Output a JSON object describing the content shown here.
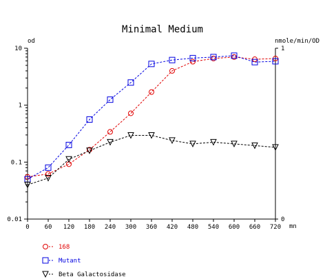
{
  "chart_data": {
    "type": "line",
    "title": "Minimal Medium",
    "left_axis_label": "od",
    "right_axis_label": "nmole/min/OD",
    "x_unit": "mn",
    "x": [
      0,
      60,
      120,
      180,
      240,
      300,
      360,
      420,
      480,
      540,
      600,
      660,
      720
    ],
    "x_ticks": [
      "0",
      "60",
      "120",
      "180",
      "240",
      "300",
      "360",
      "420",
      "480",
      "540",
      "600",
      "660",
      "720"
    ],
    "xlim": [
      0,
      720
    ],
    "left_scale": "log",
    "left_ylim": [
      0.01,
      10
    ],
    "left_ticks": [
      {
        "value": 10,
        "label": "10"
      },
      {
        "value": 1,
        "label": "1"
      },
      {
        "value": 0.1,
        "label": "0.1"
      },
      {
        "value": 0.01,
        "label": "0.01"
      }
    ],
    "right_ylim": [
      0,
      1
    ],
    "right_ticks": [
      {
        "value": 1,
        "label": "1"
      },
      {
        "value": 0,
        "label": "0"
      }
    ],
    "grid": false,
    "legend_position": "bottom-left",
    "series": [
      {
        "name": "168",
        "axis": "left",
        "color": "#e00000",
        "marker": "circle",
        "dash": "dashed",
        "values": [
          0.055,
          0.062,
          0.092,
          0.165,
          0.34,
          0.72,
          1.7,
          4.0,
          5.8,
          6.6,
          7.0,
          6.4,
          6.6
        ]
      },
      {
        "name": "Mutant",
        "axis": "left",
        "color": "#0000e0",
        "marker": "square",
        "dash": "dashed",
        "values": [
          0.05,
          0.08,
          0.2,
          0.56,
          1.25,
          2.5,
          5.3,
          6.2,
          6.7,
          7.0,
          7.4,
          5.7,
          5.9
        ]
      },
      {
        "name": "Beta Galactosidase",
        "axis": "right",
        "color": "#000000",
        "marker": "triangle-down",
        "dash": "dashed",
        "values": [
          0.2,
          0.24,
          0.35,
          0.4,
          0.45,
          0.49,
          0.49,
          0.46,
          0.44,
          0.45,
          0.44,
          0.43,
          0.42
        ]
      }
    ]
  }
}
